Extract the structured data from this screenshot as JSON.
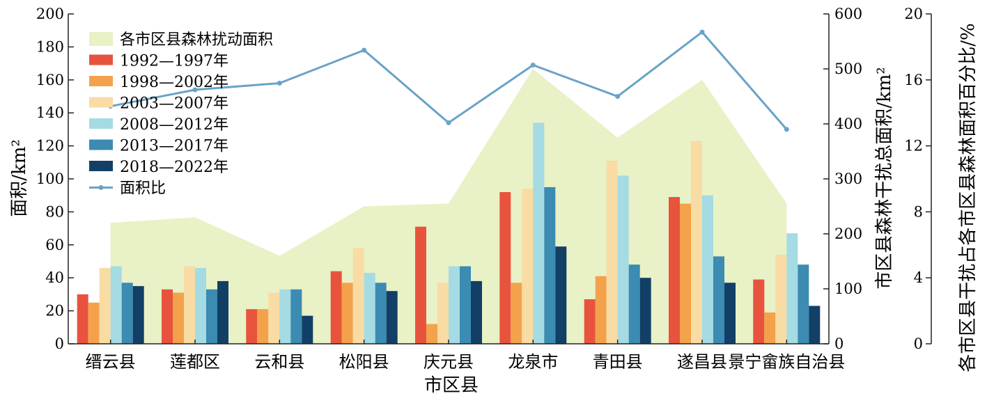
{
  "chart_data": {
    "type": "bar",
    "title": "",
    "xlabel": "市区县",
    "ylabel": "面积/km²",
    "y2label": "市区县森林干扰总面积/km²",
    "y3label": "各市区县干扰占各市区县森林面积百分比/%",
    "ylim": [
      0,
      200
    ],
    "y2lim": [
      0,
      600
    ],
    "y3lim": [
      0,
      20
    ],
    "yticks": [
      "0",
      "20",
      "40",
      "60",
      "80",
      "100",
      "120",
      "140",
      "160",
      "180",
      "200"
    ],
    "y2ticks": [
      "0",
      "100",
      "200",
      "300",
      "400",
      "500",
      "600"
    ],
    "y3ticks": [
      "0",
      "4",
      "8",
      "12",
      "16",
      "20"
    ],
    "grid": false,
    "legend_position": "top-left",
    "categories": [
      "缙云县",
      "莲都区",
      "云和县",
      "松阳县",
      "庆元县",
      "龙泉市",
      "青田县",
      "遂昌县",
      "景宁畲族自治县"
    ],
    "area_series": {
      "name": "各市区县森林扰动面积",
      "axis": "right",
      "color": "#e9f1c6",
      "values": [
        220,
        230,
        160,
        250,
        255,
        500,
        375,
        480,
        255
      ]
    },
    "series": [
      {
        "name": "1992—1997年",
        "color": "#e8533e",
        "values": [
          30,
          33,
          21,
          44,
          71,
          92,
          27,
          89,
          39
        ]
      },
      {
        "name": "1998—2002年",
        "color": "#f3a24b",
        "values": [
          25,
          31,
          21,
          37,
          12,
          37,
          41,
          85,
          19
        ]
      },
      {
        "name": "2003—2007年",
        "color": "#f9dba4",
        "values": [
          46,
          47,
          31,
          58,
          37,
          94,
          111,
          123,
          54
        ]
      },
      {
        "name": "2008—2012年",
        "color": "#a5dbe2",
        "values": [
          47,
          46,
          33,
          43,
          47,
          134,
          102,
          90,
          67
        ]
      },
      {
        "name": "2013—2017年",
        "color": "#3b8bb2",
        "values": [
          37,
          33,
          33,
          37,
          47,
          95,
          48,
          53,
          48
        ]
      },
      {
        "name": "2018—2022年",
        "color": "#123f66",
        "values": [
          35,
          38,
          17,
          32,
          38,
          59,
          40,
          37,
          23
        ]
      }
    ],
    "line_series": {
      "name": "面积比",
      "axis": "right-outer",
      "color": "#6aa2c8",
      "values": [
        14.4,
        15.4,
        15.8,
        17.8,
        13.4,
        16.9,
        15,
        18.9,
        13
      ]
    }
  }
}
